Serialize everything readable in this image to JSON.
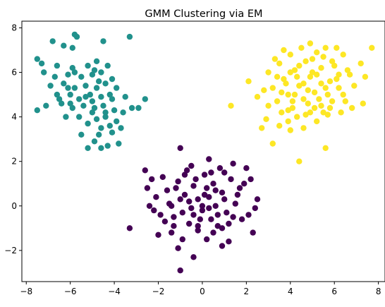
{
  "chart_data": {
    "type": "scatter",
    "title": "GMM Clustering via EM",
    "xlabel": "",
    "ylabel": "",
    "xlim": [
      -8.2,
      8.3
    ],
    "ylim": [
      -3.4,
      8.3
    ],
    "x_ticks": [
      -8,
      -6,
      -4,
      -2,
      0,
      2,
      4,
      6,
      8
    ],
    "y_ticks": [
      -2,
      0,
      2,
      4,
      6,
      8
    ],
    "x_tick_labels": [
      "−8",
      "−6",
      "−4",
      "−2",
      "0",
      "2",
      "4",
      "6",
      "8"
    ],
    "y_tick_labels": [
      "−2",
      "0",
      "2",
      "4",
      "6",
      "8"
    ],
    "grid": false,
    "legend": "none",
    "colors": {
      "cluster_0": "#440154",
      "cluster_1": "#21918c",
      "cluster_2": "#fde725"
    },
    "series": [
      {
        "color": "#440154",
        "points": [
          [
            -1.0,
            -2.9
          ],
          [
            -0.4,
            -2.3
          ],
          [
            -1.1,
            -1.9
          ],
          [
            0.9,
            -1.8
          ],
          [
            -3.3,
            -1.0
          ],
          [
            -2.0,
            -1.3
          ],
          [
            2.3,
            -1.2
          ],
          [
            -1.4,
            -1.2
          ],
          [
            0.2,
            -1.5
          ],
          [
            1.2,
            -1.6
          ],
          [
            -0.2,
            -1.1
          ],
          [
            0.7,
            -0.9
          ],
          [
            -0.6,
            -0.8
          ],
          [
            1.8,
            -0.6
          ],
          [
            -1.3,
            -0.5
          ],
          [
            0.4,
            -0.6
          ],
          [
            -0.9,
            -0.3
          ],
          [
            1.1,
            -0.3
          ],
          [
            0.0,
            -0.2
          ],
          [
            -0.5,
            -0.1
          ],
          [
            0.6,
            0.0
          ],
          [
            -1.5,
            0.1
          ],
          [
            1.5,
            0.1
          ],
          [
            -0.2,
            0.3
          ],
          [
            0.3,
            0.4
          ],
          [
            -0.8,
            0.5
          ],
          [
            0.9,
            0.6
          ],
          [
            -1.6,
            0.7
          ],
          [
            1.7,
            0.8
          ],
          [
            -0.4,
            0.9
          ],
          [
            0.5,
            1.0
          ],
          [
            -1.1,
            1.1
          ],
          [
            1.3,
            1.2
          ],
          [
            0.1,
            1.4
          ],
          [
            -0.7,
            1.6
          ],
          [
            0.8,
            1.7
          ],
          [
            -2.6,
            1.6
          ],
          [
            2.0,
            1.7
          ],
          [
            -1.0,
            2.6
          ],
          [
            0.3,
            2.1
          ],
          [
            -2.5,
            0.8
          ],
          [
            2.5,
            0.3
          ],
          [
            -2.2,
            -0.2
          ],
          [
            2.4,
            -0.1
          ],
          [
            -1.8,
            1.3
          ],
          [
            1.4,
            1.9
          ],
          [
            -0.1,
            -0.6
          ],
          [
            0.2,
            0.8
          ],
          [
            -1.3,
            -0.9
          ],
          [
            1.0,
            0.3
          ],
          [
            -0.6,
            0.2
          ],
          [
            0.7,
            -0.4
          ],
          [
            -2.1,
            0.4
          ],
          [
            1.9,
            1.0
          ],
          [
            -0.3,
            1.2
          ],
          [
            0.0,
            0.0
          ],
          [
            -1.4,
            0.0
          ],
          [
            1.2,
            -0.8
          ],
          [
            -0.9,
            -1.5
          ],
          [
            0.5,
            -1.2
          ],
          [
            -2.3,
            1.2
          ],
          [
            2.2,
            1.2
          ],
          [
            -1.7,
            -0.7
          ],
          [
            0.4,
            1.5
          ],
          [
            -0.5,
            1.8
          ],
          [
            1.6,
            0.5
          ],
          [
            -1.2,
            0.8
          ],
          [
            0.9,
            -1.0
          ],
          [
            -0.2,
            -0.9
          ],
          [
            0.3,
            -0.1
          ],
          [
            -2.4,
            0.0
          ],
          [
            2.1,
            -0.4
          ],
          [
            -0.8,
            1.4
          ],
          [
            1.0,
            1.5
          ],
          [
            -1.9,
            -0.4
          ],
          [
            0.6,
            0.7
          ],
          [
            -0.4,
            -0.4
          ],
          [
            1.4,
            -0.5
          ],
          [
            -1.0,
            0.3
          ],
          [
            0.1,
            0.5
          ]
        ]
      },
      {
        "color": "#21918c",
        "points": [
          [
            -5.8,
            7.7
          ],
          [
            -5.7,
            7.6
          ],
          [
            -6.8,
            7.4
          ],
          [
            -4.5,
            7.4
          ],
          [
            -3.3,
            7.6
          ],
          [
            -5.9,
            7.1
          ],
          [
            -6.3,
            7.2
          ],
          [
            -7.5,
            6.6
          ],
          [
            -7.3,
            6.4
          ],
          [
            -6.6,
            6.3
          ],
          [
            -5.9,
            6.2
          ],
          [
            -5.2,
            6.3
          ],
          [
            -4.8,
            6.5
          ],
          [
            -4.3,
            6.3
          ],
          [
            -7.2,
            6.0
          ],
          [
            -6.7,
            5.8
          ],
          [
            -6.1,
            5.9
          ],
          [
            -5.5,
            5.8
          ],
          [
            -5.0,
            5.9
          ],
          [
            -4.6,
            6.0
          ],
          [
            -4.1,
            5.7
          ],
          [
            -6.9,
            5.4
          ],
          [
            -6.3,
            5.5
          ],
          [
            -5.8,
            5.3
          ],
          [
            -5.3,
            5.4
          ],
          [
            -4.8,
            5.3
          ],
          [
            -4.4,
            5.5
          ],
          [
            -3.9,
            5.3
          ],
          [
            -6.6,
            5.0
          ],
          [
            -6.0,
            5.0
          ],
          [
            -5.6,
            4.8
          ],
          [
            -5.1,
            5.0
          ],
          [
            -4.6,
            4.9
          ],
          [
            -4.1,
            4.8
          ],
          [
            -3.5,
            4.9
          ],
          [
            -7.1,
            4.5
          ],
          [
            -6.4,
            4.6
          ],
          [
            -5.9,
            4.4
          ],
          [
            -5.4,
            4.5
          ],
          [
            -4.9,
            4.4
          ],
          [
            -4.5,
            4.5
          ],
          [
            -4.0,
            4.3
          ],
          [
            -3.2,
            4.4
          ],
          [
            -2.9,
            4.4
          ],
          [
            -2.6,
            4.8
          ],
          [
            -7.5,
            4.3
          ],
          [
            -6.2,
            4.0
          ],
          [
            -5.6,
            4.0
          ],
          [
            -5.0,
            4.2
          ],
          [
            -4.4,
            4.0
          ],
          [
            -3.9,
            3.8
          ],
          [
            -5.2,
            3.7
          ],
          [
            -4.6,
            3.5
          ],
          [
            -4.2,
            3.6
          ],
          [
            -3.7,
            3.5
          ],
          [
            -5.5,
            3.2
          ],
          [
            -4.7,
            3.2
          ],
          [
            -4.1,
            3.3
          ],
          [
            -4.9,
            2.9
          ],
          [
            -4.3,
            2.7
          ],
          [
            -3.8,
            2.8
          ],
          [
            -4.6,
            2.6
          ],
          [
            -5.2,
            2.6
          ],
          [
            -6.5,
            4.8
          ],
          [
            -5.8,
            6.0
          ],
          [
            -4.9,
            6.1
          ],
          [
            -4.2,
            5.0
          ],
          [
            -5.0,
            4.7
          ],
          [
            -4.7,
            5.6
          ],
          [
            -6.1,
            5.3
          ],
          [
            -3.6,
            4.2
          ],
          [
            -5.3,
            4.9
          ],
          [
            -4.4,
            4.2
          ],
          [
            -6.0,
            4.6
          ],
          [
            -4.8,
            3.9
          ]
        ]
      },
      {
        "color": "#fde725",
        "points": [
          [
            4.4,
            2.0
          ],
          [
            5.6,
            2.6
          ],
          [
            3.2,
            2.8
          ],
          [
            4.0,
            3.4
          ],
          [
            2.7,
            3.5
          ],
          [
            3.5,
            3.6
          ],
          [
            4.6,
            3.5
          ],
          [
            3.9,
            3.8
          ],
          [
            5.2,
            3.8
          ],
          [
            2.9,
            3.9
          ],
          [
            4.3,
            4.0
          ],
          [
            5.7,
            4.1
          ],
          [
            3.6,
            4.2
          ],
          [
            4.9,
            4.2
          ],
          [
            6.3,
            4.2
          ],
          [
            1.3,
            4.5
          ],
          [
            3.0,
            4.5
          ],
          [
            4.1,
            4.4
          ],
          [
            5.4,
            4.5
          ],
          [
            6.8,
            4.4
          ],
          [
            3.4,
            4.7
          ],
          [
            4.6,
            4.8
          ],
          [
            5.9,
            4.7
          ],
          [
            7.3,
            4.6
          ],
          [
            2.5,
            4.9
          ],
          [
            3.9,
            5.0
          ],
          [
            5.1,
            5.1
          ],
          [
            6.4,
            5.0
          ],
          [
            3.2,
            5.3
          ],
          [
            4.4,
            5.4
          ],
          [
            5.6,
            5.3
          ],
          [
            6.9,
            5.4
          ],
          [
            2.1,
            5.6
          ],
          [
            3.7,
            5.7
          ],
          [
            4.9,
            5.8
          ],
          [
            6.1,
            5.7
          ],
          [
            7.4,
            5.8
          ],
          [
            3.0,
            6.0
          ],
          [
            4.2,
            6.1
          ],
          [
            5.4,
            6.2
          ],
          [
            6.6,
            6.1
          ],
          [
            3.5,
            6.4
          ],
          [
            4.7,
            6.5
          ],
          [
            5.9,
            6.5
          ],
          [
            7.2,
            6.4
          ],
          [
            4.0,
            6.8
          ],
          [
            5.2,
            6.9
          ],
          [
            6.4,
            6.8
          ],
          [
            4.5,
            7.1
          ],
          [
            5.6,
            7.1
          ],
          [
            3.7,
            7.0
          ],
          [
            4.9,
            7.3
          ],
          [
            6.1,
            7.1
          ],
          [
            7.7,
            7.1
          ],
          [
            5.0,
            6.0
          ],
          [
            4.6,
            5.5
          ],
          [
            5.3,
            4.8
          ],
          [
            4.2,
            5.0
          ],
          [
            5.8,
            5.6
          ],
          [
            4.8,
            4.6
          ],
          [
            3.8,
            5.5
          ],
          [
            6.2,
            5.3
          ],
          [
            5.5,
            6.7
          ],
          [
            4.1,
            4.7
          ],
          [
            6.7,
            5.9
          ],
          [
            3.3,
            6.6
          ],
          [
            5.1,
            4.4
          ],
          [
            4.4,
            6.3
          ],
          [
            5.7,
            5.0
          ],
          [
            4.7,
            4.1
          ],
          [
            6.0,
            6.3
          ],
          [
            3.6,
            5.1
          ],
          [
            5.4,
            5.5
          ],
          [
            4.0,
            6.0
          ],
          [
            5.0,
            6.6
          ],
          [
            6.5,
            4.7
          ],
          [
            2.8,
            5.2
          ],
          [
            3.9,
            4.3
          ],
          [
            5.8,
            4.4
          ],
          [
            4.3,
            5.8
          ],
          [
            5.2,
            5.9
          ],
          [
            6.2,
            5.9
          ],
          [
            4.8,
            5.2
          ],
          [
            3.4,
            5.8
          ],
          [
            5.5,
            4.2
          ]
        ]
      }
    ]
  }
}
